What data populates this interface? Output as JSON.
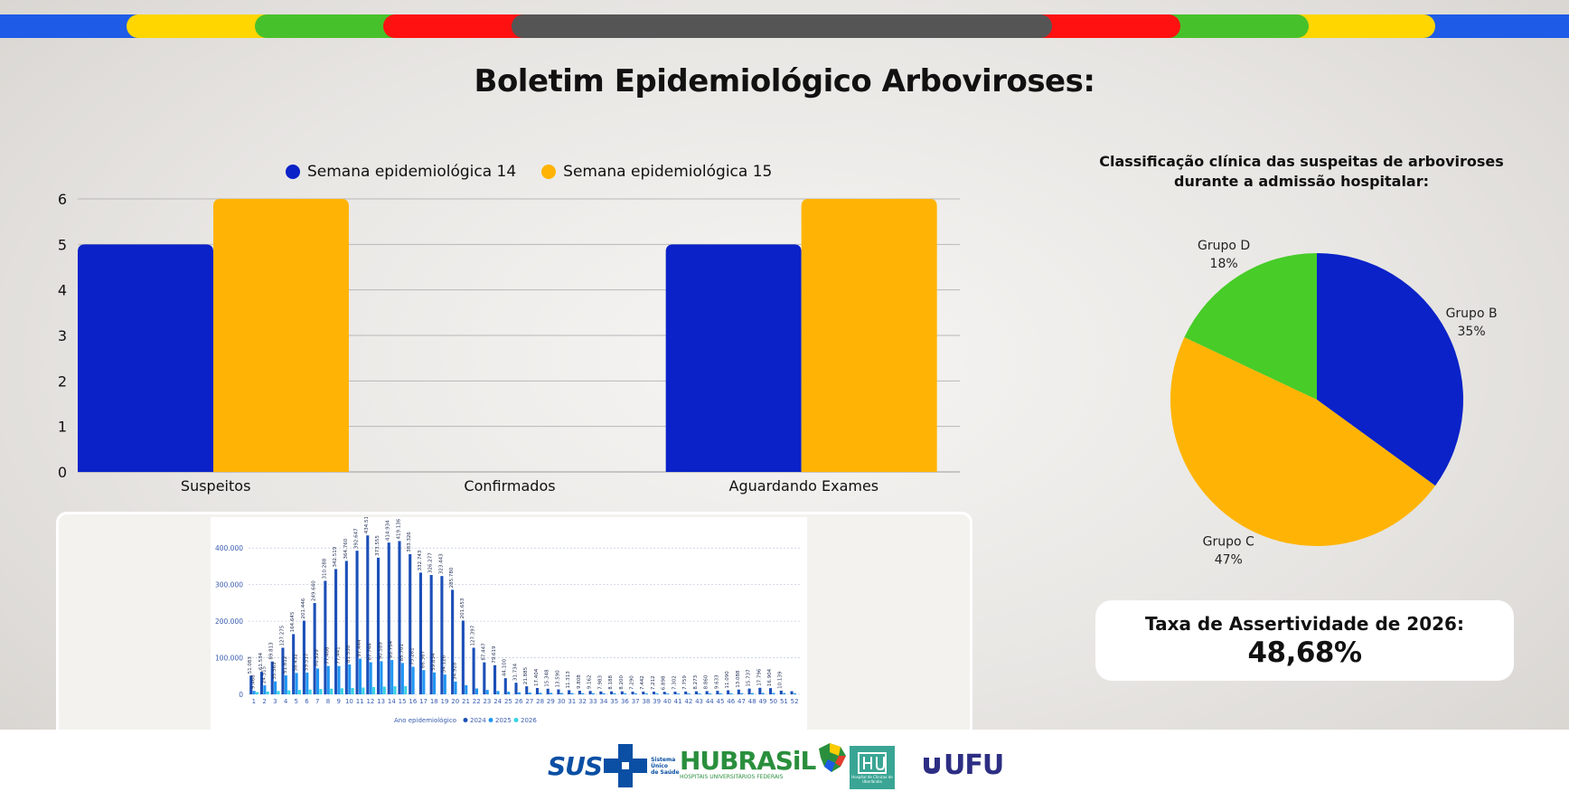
{
  "page": {
    "title": "Boletim Epidemiológico Arboviroses:",
    "band_colors": [
      "#1e5be6",
      "#ffd600",
      "#47c12b",
      "#ff1111",
      "#555555",
      "#ff1111",
      "#47c12b",
      "#ffd600",
      "#1e5be6"
    ]
  },
  "bar_panel": {
    "legend": [
      {
        "label": "Semana epidemiológica 14",
        "color": "#0a22c8"
      },
      {
        "label": "Semana epidemiológica 15",
        "color": "#ffb405"
      }
    ]
  },
  "pie_panel": {
    "title_line1": "Classificação clínica das suspeitas de arboviroses",
    "title_line2": "durante a admissão hospitalar:"
  },
  "rate_card": {
    "label": "Taxa de Assertividade de 2026:",
    "value": "48,68%"
  },
  "footer": {
    "sus": "SUS",
    "sus_sub": [
      "Sistema",
      "Único",
      "de Saúde"
    ],
    "hubrasil": "HUBRASiL",
    "hubrasil_sub": "HOSPITAIS UNIVERSITÁRIOS FEDERAIS",
    "hc_sub": "Hospital de Clínicas de Uberlândia",
    "ufu": "UFU"
  },
  "chart_data": [
    {
      "type": "bar",
      "categories": [
        "Suspeitos",
        "Confirmados",
        "Aguardando Exames"
      ],
      "series": [
        {
          "name": "Semana epidemiológica 14",
          "values": [
            5,
            0,
            5
          ],
          "color": "#0a22c8"
        },
        {
          "name": "Semana epidemiológica 15",
          "values": [
            6,
            0,
            6
          ],
          "color": "#ffb405"
        }
      ],
      "ylim": [
        0,
        6
      ],
      "yticks": [
        0,
        1,
        2,
        3,
        4,
        5,
        6
      ],
      "grid": true,
      "legend": "top"
    },
    {
      "type": "pie",
      "title": "Classificação clínica das suspeitas de arboviroses durante a admissão hospitalar:",
      "slices": [
        {
          "label": "Grupo B",
          "percent_label": "35%",
          "value": 35,
          "color": "#0a22c8"
        },
        {
          "label": "Grupo C",
          "percent_label": "47%",
          "value": 47,
          "color": "#ffb405"
        },
        {
          "label": "Grupo D",
          "percent_label": "18%",
          "value": 18,
          "color": "#47cc28"
        }
      ]
    },
    {
      "type": "bar",
      "xlabel": "Ano epidemiológico",
      "categories": [
        "1",
        "2",
        "3",
        "4",
        "5",
        "6",
        "7",
        "8",
        "9",
        "10",
        "11",
        "12",
        "13",
        "14",
        "15",
        "16",
        "17",
        "18",
        "19",
        "20",
        "21",
        "22",
        "23",
        "24",
        "25",
        "26",
        "27",
        "28",
        "29",
        "30",
        "31",
        "32",
        "33",
        "34",
        "35",
        "36",
        "37",
        "38",
        "39",
        "40",
        "41",
        "42",
        "43",
        "44",
        "45",
        "46",
        "47",
        "48",
        "49",
        "50",
        "51",
        "52"
      ],
      "yticks": [
        0,
        100000,
        200000,
        300000,
        400000
      ],
      "ytick_labels": [
        "0",
        "100.000",
        "200.000",
        "300.000",
        "400.000"
      ],
      "ylim": [
        0,
        440000
      ],
      "series": [
        {
          "name": "2024",
          "color": "#1c4fb8",
          "values": [
            51083,
            61534,
            89813,
            127275,
            164645,
            201446,
            249640,
            310288,
            342519,
            364760,
            392647,
            434513,
            373555,
            414934,
            419136,
            383326,
            332743,
            326277,
            323443,
            285780,
            201653,
            127397,
            87447,
            79619,
            44100,
            31734,
            21885,
            17404,
            15348,
            13590,
            11313,
            9808,
            9162,
            7983,
            8188,
            8200,
            7290,
            7442,
            7212,
            6898,
            7302,
            7759,
            8273,
            8860,
            9633,
            11090,
            13088,
            15737,
            17796,
            16904,
            10139,
            8500
          ],
          "labels": [
            "51.083",
            "61.534",
            "89.813",
            "127.275",
            "164.645",
            "201.446",
            "249.640",
            "310.288",
            "342.519",
            "364.760",
            "392.647",
            "434.513",
            "373.555",
            "414.934",
            "419.136",
            "383.326",
            "332.743",
            "326.277",
            "323.443",
            "285.780",
            "201.653",
            "127.397",
            "87.447",
            "79.619",
            "44.100",
            "31.734",
            "21.885",
            "17.404",
            "15.348",
            "13.590",
            "11.313",
            "9.808",
            "9.162",
            "7.983",
            "8.188",
            "8.200",
            "7.290",
            "7.442",
            "7.212",
            "6.898",
            "7.302",
            "7.759",
            "8.273",
            "8.860",
            "9.633",
            "11.090",
            "13.088",
            "15.737",
            "17.796",
            "16.904",
            "10.139",
            ""
          ]
        },
        {
          "name": "2025",
          "color": "#2196f3",
          "values": [
            9468,
            24515,
            35563,
            51812,
            58432,
            59517,
            70529,
            77408,
            77441,
            81530,
            97444,
            87744,
            90589,
            93754,
            85701,
            75261,
            66367,
            59834,
            54126,
            34928,
            25000,
            16000,
            12000,
            9000,
            7000,
            5500,
            4800,
            4200,
            3900,
            3600,
            3300,
            3100,
            2900,
            2800,
            2700,
            2600,
            2500,
            2400,
            2400,
            2300,
            2300,
            2300,
            2400,
            2500,
            2600,
            2800,
            3000,
            3300,
            3600,
            3800,
            3500,
            3000
          ],
          "labels": [
            "9.468",
            "24.515",
            "35.563",
            "51.812",
            "58.432",
            "59.517",
            "70.529",
            "77.408",
            "77.441",
            "81.530",
            "97.444",
            "87.744",
            "90.589",
            "93.754",
            "85.701",
            "75.261",
            "66.367",
            "59.834",
            "54.126",
            "34.928",
            "",
            "",
            "",
            "",
            "",
            "",
            "",
            "",
            "",
            "",
            "",
            "",
            "",
            "",
            "",
            "",
            "",
            "",
            "",
            "",
            "",
            "",
            "",
            "",
            "",
            "",
            "",
            "",
            "",
            "",
            "",
            ""
          ]
        },
        {
          "name": "2026",
          "color": "#39d3e3",
          "values": [
            6000,
            7500,
            9000,
            11000,
            12000,
            13000,
            14500,
            15500,
            16500,
            17500,
            18500,
            20000,
            21000,
            22000,
            22500,
            0,
            0,
            0,
            0,
            0,
            0,
            0,
            0,
            0,
            0,
            0,
            0,
            0,
            0,
            0,
            0,
            0,
            0,
            0,
            0,
            0,
            0,
            0,
            0,
            0,
            0,
            0,
            0,
            0,
            0,
            0,
            0,
            0,
            0,
            0,
            0,
            0
          ]
        }
      ],
      "legend": "bottom"
    }
  ]
}
